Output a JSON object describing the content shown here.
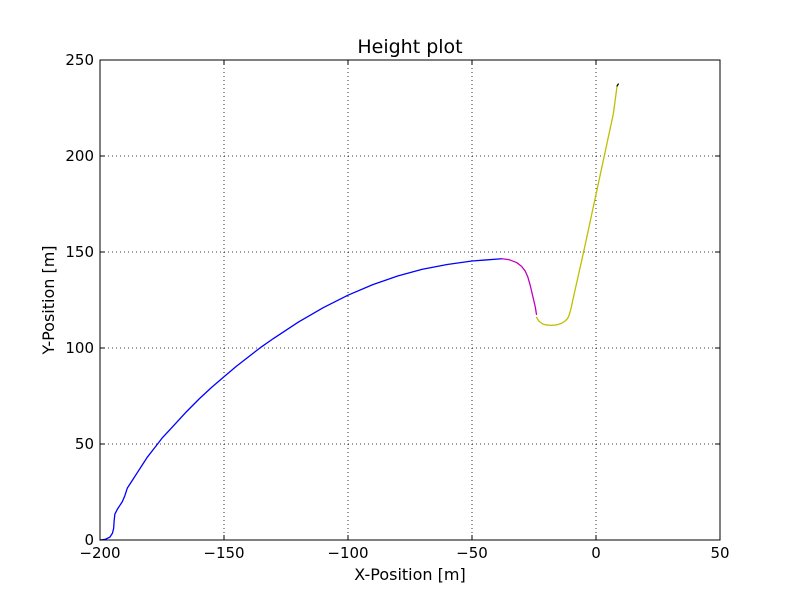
{
  "chart_data": {
    "type": "line",
    "title": "Height plot",
    "xlabel": "X-Position [m]",
    "ylabel": "Y-Position [m]",
    "xlim": [
      -200,
      50
    ],
    "ylim": [
      0,
      250
    ],
    "xticks": [
      -200,
      -150,
      -100,
      -50,
      0,
      50
    ],
    "yticks": [
      0,
      50,
      100,
      150,
      200,
      250
    ],
    "grid": true,
    "legend": "none",
    "series": [
      {
        "color": "#0000ff",
        "x": [
          -200,
          -198,
          -196,
          -195,
          -194.5,
          -194.3,
          -194,
          -193,
          -192,
          -191,
          -190,
          -189,
          -187,
          -185,
          -183,
          -181,
          -178,
          -175,
          -170,
          -165,
          -160,
          -155,
          -150,
          -145,
          -140,
          -135,
          -130,
          -120,
          -110,
          -100,
          -90,
          -80,
          -70,
          -60,
          -50,
          -45,
          -40,
          -38
        ],
        "y": [
          0,
          0.3,
          1.5,
          3.5,
          6,
          10,
          13.5,
          16,
          18,
          20,
          23,
          27,
          31,
          35,
          39,
          43,
          48,
          53,
          60,
          67,
          73.5,
          79.5,
          85,
          90.5,
          95.5,
          100.5,
          105,
          113.5,
          121,
          127.5,
          133,
          137.5,
          141,
          143.5,
          145.3,
          145.8,
          146.3,
          146.5
        ]
      },
      {
        "color": "#bf00bf",
        "x": [
          -38,
          -35,
          -32,
          -30,
          -28.5,
          -27.5,
          -26.5,
          -25.5,
          -24.5,
          -24
        ],
        "y": [
          146.5,
          146,
          144.5,
          142.5,
          140,
          137,
          132.5,
          127,
          121.5,
          117.5
        ]
      },
      {
        "color": "#bfbf00",
        "x": [
          -24,
          -23,
          -21.5,
          -20,
          -18,
          -16,
          -14,
          -12.5,
          -11.5,
          -11,
          -10.5,
          -10,
          -9,
          -7,
          -5,
          -3,
          -1,
          1,
          3,
          5,
          7,
          8.5
        ],
        "y": [
          116,
          114,
          112.5,
          112,
          111.8,
          112,
          112.8,
          114,
          115.3,
          116.5,
          118.5,
          121,
          127,
          138.5,
          150,
          162,
          174,
          186,
          198,
          210,
          222,
          236.5
        ]
      },
      {
        "color": "#000000",
        "x": [
          8.5,
          9
        ],
        "y": [
          236.5,
          237.5
        ]
      }
    ]
  }
}
